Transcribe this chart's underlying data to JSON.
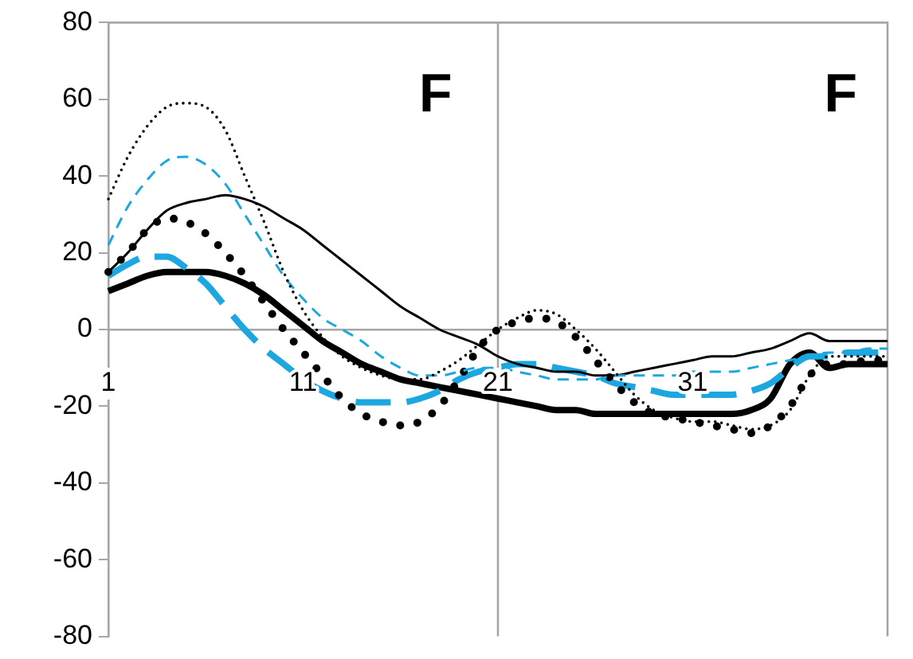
{
  "chart_data": {
    "type": "line",
    "categories": [
      "1",
      null,
      null,
      null,
      null,
      null,
      null,
      null,
      null,
      null,
      "11",
      null,
      null,
      null,
      null,
      null,
      null,
      null,
      null,
      null,
      "21",
      null,
      null,
      null,
      null,
      null,
      null,
      null,
      null,
      null,
      "31",
      null,
      null,
      null,
      null,
      null,
      null,
      null,
      null,
      null,
      null
    ],
    "ylim": [
      -80,
      80
    ],
    "yticks": [
      -80,
      -60,
      -40,
      -20,
      0,
      20,
      40,
      60,
      80
    ],
    "grid": false,
    "legend": false,
    "marker": "none",
    "annotations": [
      "F",
      "F"
    ],
    "ref_lines": [
      {
        "axis": "x",
        "value": "21",
        "color": "#a6a6a6"
      }
    ],
    "series": [
      {
        "color": "#000000",
        "line_style": "dotted",
        "values": [
          34,
          45,
          53,
          58,
          59,
          58,
          52,
          40,
          28,
          15,
          5,
          -2,
          -7,
          -10,
          -12,
          -13,
          -13,
          -11,
          -8,
          -4,
          0,
          3,
          5,
          4,
          0,
          -5,
          -11,
          -17,
          -21,
          -23,
          -24,
          -24,
          -25,
          -26,
          -25,
          -21,
          -12,
          -7,
          -7,
          -7,
          -7
        ]
      },
      {
        "color": "#1ca7e0",
        "line_style": "dashed",
        "values": [
          22,
          32,
          39,
          44,
          45,
          43,
          38,
          30,
          22,
          14,
          8,
          3,
          0,
          -3,
          -7,
          -10,
          -12,
          -12,
          -11,
          -10,
          -10,
          -11,
          -12,
          -13,
          -13,
          -13,
          -12,
          -12,
          -12,
          -12,
          -11,
          -11,
          -11,
          -10,
          -9,
          -8,
          -7,
          -6,
          -6,
          -5,
          -5
        ]
      },
      {
        "color": "#000000",
        "line_style": "solid",
        "values": [
          15,
          20,
          26,
          31,
          33,
          34,
          35,
          34,
          32,
          29,
          26,
          22,
          18,
          14,
          10,
          6,
          3,
          0,
          -2,
          -4,
          -7,
          -9,
          -10,
          -11,
          -11,
          -12,
          -12,
          -11,
          -10,
          -9,
          -8,
          -7,
          -7,
          -6,
          -5,
          -3,
          -1,
          -3,
          -3,
          -3,
          -3
        ]
      },
      {
        "color": "#000000",
        "line_style": "dotted",
        "values": [
          15,
          20,
          26,
          29,
          28,
          25,
          20,
          14,
          7,
          0,
          -6,
          -12,
          -18,
          -22,
          -24,
          -25,
          -24,
          -20,
          -13,
          -5,
          0,
          2,
          3,
          2,
          -2,
          -8,
          -14,
          -19,
          -22,
          -23,
          -24,
          -25,
          -26,
          -27,
          -25,
          -20,
          -12,
          -9,
          -9,
          -8,
          -8
        ]
      },
      {
        "color": "#1ca7e0",
        "line_style": "dashed",
        "values": [
          14,
          17,
          19,
          19,
          16,
          12,
          6,
          0,
          -5,
          -9,
          -13,
          -16,
          -18,
          -19,
          -19,
          -19,
          -18,
          -16,
          -13,
          -11,
          -10,
          -9,
          -9,
          -10,
          -11,
          -12,
          -14,
          -15,
          -16,
          -17,
          -17,
          -17,
          -17,
          -16,
          -14,
          -10,
          -7,
          -7,
          -6,
          -6,
          -6
        ]
      },
      {
        "color": "#000000",
        "line_style": "solid",
        "values": [
          10,
          12,
          14,
          15,
          15,
          15,
          14,
          12,
          9,
          5,
          1,
          -3,
          -6,
          -9,
          -11,
          -13,
          -14,
          -15,
          -16,
          -17,
          -18,
          -19,
          -20,
          -21,
          -21,
          -22,
          -22,
          -22,
          -22,
          -22,
          -22,
          -22,
          -22,
          -21,
          -18,
          -9,
          -6,
          -10,
          -9,
          -9,
          -9
        ]
      }
    ]
  }
}
